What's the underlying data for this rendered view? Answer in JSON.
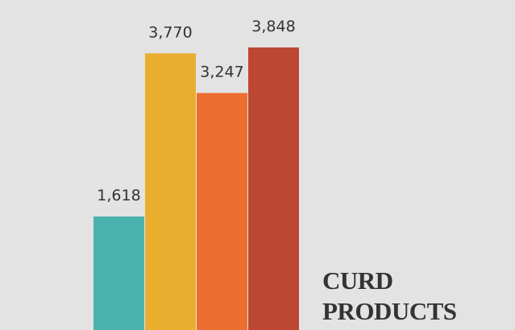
{
  "chart_data": {
    "type": "bar",
    "title": "CURD PRODUCTS",
    "values": [
      1618,
      3770,
      3247,
      3848
    ],
    "value_labels": [
      "1,618",
      "3,770",
      "3,247",
      "3,848"
    ],
    "colors": [
      "#4ab3ae",
      "#eaae2f",
      "#ec6e31",
      "#bc4733"
    ]
  }
}
